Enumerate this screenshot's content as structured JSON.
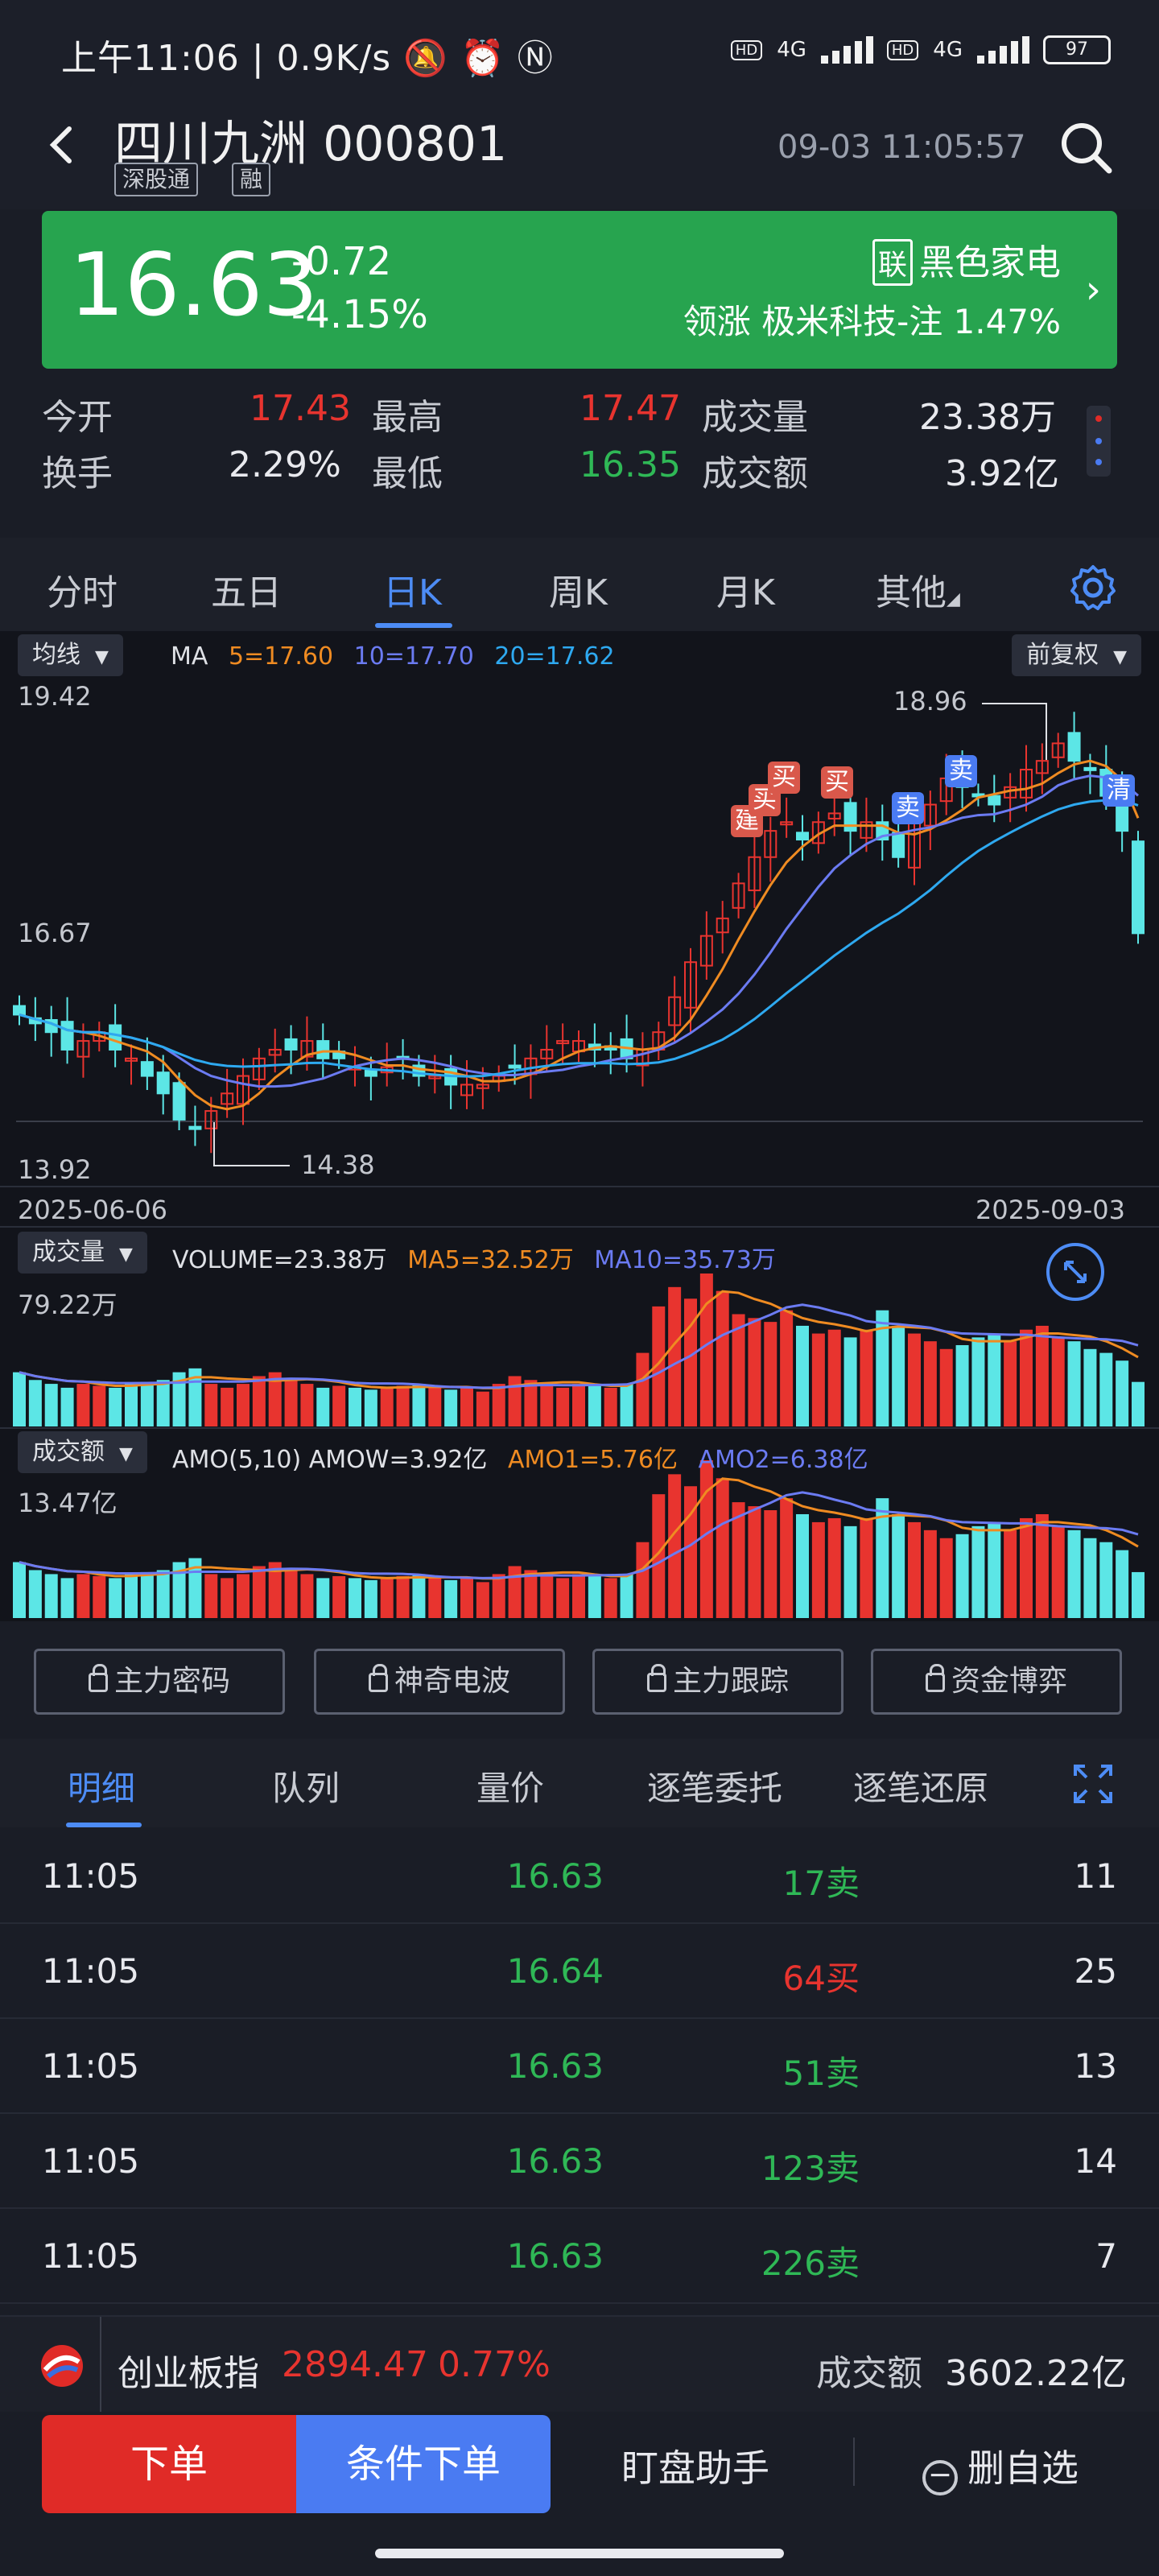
{
  "status_bar": {
    "time": "上午11:06",
    "speed": "0.9K/s",
    "net1": "4G",
    "net2": "4G",
    "hd": "HD",
    "battery": "97"
  },
  "header": {
    "title": "四川九洲 000801",
    "tags": [
      "深股通",
      "融"
    ],
    "datetime": "09-03 11:05:57"
  },
  "quote": {
    "price": "16.63",
    "change": "-0.72",
    "change_pct": "-4.15%",
    "sector_tag": "联",
    "sector": "黑色家电",
    "lead": "领涨 极米科技-注 1.47%",
    "color": "#27a44f"
  },
  "stats": {
    "open_label": "今开",
    "open": "17.43",
    "high_label": "最高",
    "high": "17.47",
    "volume_label": "成交量",
    "volume": "23.38万",
    "turnover_label": "换手",
    "turnover": "2.29%",
    "low_label": "最低",
    "low": "16.35",
    "amount_label": "成交额",
    "amount": "3.92亿"
  },
  "ktabs": [
    "分时",
    "五日",
    "日K",
    "周K",
    "月K",
    "其他"
  ],
  "chart": {
    "ma_select": "均线",
    "ma_label": "MA",
    "ma5": "5=17.60",
    "ma10": "10=17.70",
    "ma20": "20=17.62",
    "adjust": "前复权",
    "y_top": "19.42",
    "y_mid": "16.67",
    "y_bottom": "13.92",
    "high_mark": "18.96",
    "low_mark": "14.38",
    "date_start": "2025-06-06",
    "date_end": "2025-09-03",
    "vol_select": "成交量",
    "vol_line": "VOLUME=23.38万",
    "vol_ma5": "MA5=32.52万",
    "vol_ma10": "MA10=35.73万",
    "vol_max": "79.22万",
    "amo_select": "成交额",
    "amo_line": "AMO(5,10)  AMOW=3.92亿",
    "amo1": "AMO1=5.76亿",
    "amo2": "AMO2=6.38亿",
    "amo_max": "13.47亿",
    "signals": [
      "建",
      "买",
      "买",
      "买",
      "卖",
      "卖",
      "清"
    ]
  },
  "chart_data": {
    "type": "candlestick",
    "title": "四川九洲 000801 日K",
    "x_range": [
      "2025-06-06",
      "2025-09-03"
    ],
    "ylim": [
      13.92,
      19.42
    ],
    "high": 18.96,
    "low": 14.38,
    "last_close": 16.63,
    "ma": {
      "MA5": 17.6,
      "MA10": 17.7,
      "MA20": 17.62
    },
    "volume": {
      "last": "23.38万",
      "MA5": "32.52万",
      "MA10": "35.73万",
      "max": "79.22万"
    },
    "amount": {
      "last": "3.92亿",
      "AMO1": "5.76亿",
      "AMO2": "6.38亿",
      "max": "13.47亿"
    },
    "closes": [
      15.7,
      15.6,
      15.5,
      15.3,
      15.4,
      15.5,
      15.3,
      15.2,
      15.0,
      14.8,
      14.5,
      14.4,
      14.6,
      14.8,
      15.0,
      15.2,
      15.3,
      15.3,
      15.4,
      15.2,
      15.2,
      15.1,
      15.0,
      15.1,
      15.2,
      15.0,
      15.0,
      14.9,
      14.9,
      14.9,
      15.0,
      15.1,
      15.2,
      15.3,
      15.4,
      15.4,
      15.3,
      15.3,
      15.2,
      15.3,
      15.5,
      15.9,
      16.3,
      16.6,
      16.8,
      17.2,
      17.5,
      17.8,
      17.9,
      17.7,
      17.9,
      18.0,
      17.8,
      17.9,
      17.7,
      17.5,
      17.9,
      18.1,
      18.4,
      18.3,
      18.2,
      18.1,
      18.3,
      18.5,
      18.6,
      18.8,
      18.6,
      18.5,
      18.2,
      17.8,
      16.63
    ],
    "vol_values": [
      28,
      24,
      22,
      20,
      22,
      21,
      20,
      22,
      23,
      24,
      28,
      30,
      22,
      20,
      22,
      26,
      28,
      24,
      22,
      20,
      21,
      20,
      19,
      20,
      21,
      22,
      20,
      19,
      20,
      18,
      22,
      26,
      24,
      22,
      20,
      22,
      21,
      20,
      22,
      38,
      62,
      72,
      66,
      79,
      70,
      58,
      56,
      54,
      60,
      52,
      48,
      50,
      46,
      50,
      60,
      52,
      48,
      44,
      40,
      42,
      46,
      48,
      44,
      50,
      52,
      46,
      44,
      40,
      38,
      34,
      23
    ]
  },
  "features": [
    "主力密码",
    "神奇电波",
    "主力跟踪",
    "资金博弈"
  ],
  "dtabs": [
    "明细",
    "队列",
    "量价",
    "逐笔委托",
    "逐笔还原"
  ],
  "trades": [
    {
      "time": "11:05",
      "price": "16.63",
      "vol": "17卖",
      "count": "11",
      "side": "sell"
    },
    {
      "time": "11:05",
      "price": "16.64",
      "vol": "64买",
      "count": "25",
      "side": "buy"
    },
    {
      "time": "11:05",
      "price": "16.63",
      "vol": "51卖",
      "count": "13",
      "side": "sell"
    },
    {
      "time": "11:05",
      "price": "16.63",
      "vol": "123卖",
      "count": "14",
      "side": "sell"
    },
    {
      "time": "11:05",
      "price": "16.63",
      "vol": "226卖",
      "count": "7",
      "side": "sell"
    }
  ],
  "index_bar": {
    "name": "创业板指",
    "value": "2894.47",
    "pct": "0.77%",
    "amount_label": "成交额",
    "amount": "3602.22亿"
  },
  "bottom": {
    "order": "下单",
    "cond_order": "条件下单",
    "assistant": "盯盘助手",
    "remove": "删自选"
  }
}
